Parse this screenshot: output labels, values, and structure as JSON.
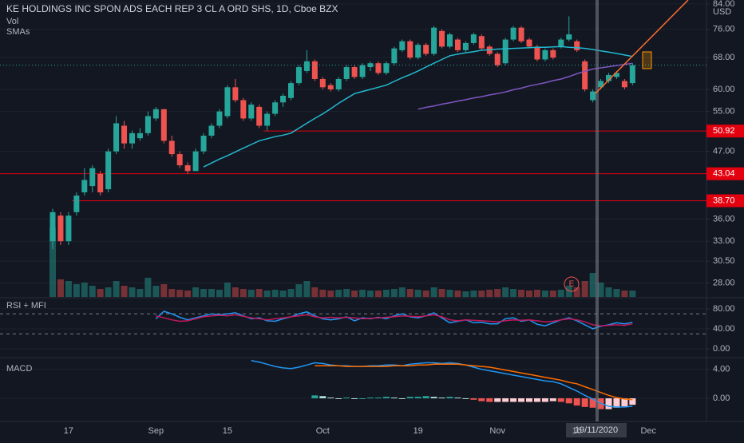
{
  "chart_data": [
    {
      "type": "candlestick",
      "title": "KE HOLDINGS INC SPON ADS EACH REP 3 CL A ORD SHS, 1D, Cboe BZX",
      "indicator_labels": [
        "Vol",
        "SMAs"
      ],
      "currency": "USD",
      "event_marker": "E",
      "up_color": "#26a69a",
      "down_color": "#ef5350",
      "log": true,
      "grid": true,
      "ylim": [
        26.5,
        85.3
      ],
      "yticks": [
        {
          "value": 84,
          "label": "84.00"
        },
        {
          "value": 76,
          "label": "76.00"
        },
        {
          "value": 68,
          "label": "68.00"
        },
        {
          "value": 60,
          "label": "60.00"
        },
        {
          "value": 55,
          "label": "55.00"
        },
        {
          "value": 47,
          "label": "47.00"
        },
        {
          "value": 36,
          "label": "36.00"
        },
        {
          "value": 33,
          "label": "33.00"
        },
        {
          "value": 30.5,
          "label": "30.50"
        },
        {
          "value": 28,
          "label": "28.00"
        }
      ],
      "price_lines": [
        {
          "value": 50.92,
          "label": "50.92"
        },
        {
          "value": 43.04,
          "label": "43.04"
        },
        {
          "value": 38.7,
          "label": "38.70"
        }
      ],
      "price_line_color": "#e3000f",
      "open": [
        33,
        36.5,
        33,
        37,
        40,
        41,
        43,
        40.5,
        47,
        52,
        48.5,
        49.5,
        50.5,
        53.5,
        55.5,
        49,
        46.5,
        44.5,
        43.5,
        47,
        50,
        52,
        54,
        60.5,
        57.5,
        53.5,
        56,
        52,
        54.5,
        57,
        58,
        61.5,
        64.5,
        67,
        62.5,
        61,
        60,
        62.5,
        65.5,
        63,
        65.5,
        66.5,
        64,
        66.5,
        70,
        72.5,
        68,
        71.5,
        69,
        75.5,
        71,
        73,
        70,
        72,
        74,
        71,
        69,
        66.5,
        73,
        76.5,
        73,
        71,
        67.5,
        70,
        71,
        73,
        72.5,
        67,
        57.5,
        60.5,
        62,
        63,
        62,
        61.5,
        null,
        null
      ],
      "high": [
        37.5,
        37,
        37,
        40,
        44,
        44.5,
        43.5,
        47.5,
        54,
        53,
        51,
        51.5,
        55,
        56,
        55.5,
        50,
        47,
        45,
        47.5,
        50.5,
        52.5,
        55.5,
        61,
        62.5,
        58,
        57,
        56.5,
        55,
        57.5,
        59,
        62,
        66,
        70,
        67.5,
        63,
        61.5,
        63,
        66,
        66,
        66.5,
        67,
        67,
        67,
        71,
        73,
        73,
        72,
        72,
        77,
        76,
        75,
        73.5,
        72.5,
        75,
        74.5,
        71.5,
        69.5,
        73.5,
        77,
        77,
        73.5,
        71.5,
        70.5,
        70.5,
        73.5,
        80,
        73,
        67.5,
        60,
        62.5,
        64,
        64.5,
        62.5,
        66.5,
        null,
        null
      ],
      "low": [
        32,
        32.5,
        32.5,
        36.5,
        39.5,
        40,
        39.5,
        40,
        46.5,
        47.5,
        47.5,
        49,
        50,
        53,
        48.5,
        46,
        44,
        43,
        43.5,
        46.5,
        49.5,
        51.5,
        53.5,
        57,
        53,
        53,
        51.5,
        51,
        54,
        56,
        57.5,
        61,
        64,
        62,
        60,
        59.5,
        59.5,
        62,
        62.5,
        62.5,
        64.5,
        63.5,
        63.5,
        66,
        69.5,
        67.5,
        67.5,
        68.5,
        68.5,
        70.5,
        70.5,
        69.5,
        69.5,
        71.5,
        70,
        68.5,
        65.5,
        66,
        72.5,
        72,
        70.5,
        67,
        67,
        67.5,
        70.5,
        72.5,
        69.5,
        59.5,
        57,
        60,
        61.5,
        62.5,
        60,
        61,
        null,
        null
      ],
      "close": [
        37,
        33,
        36.5,
        39.5,
        42,
        44,
        40,
        47,
        52.5,
        48.5,
        50.5,
        50.5,
        54,
        55.5,
        49,
        46.5,
        44.5,
        43.5,
        47,
        50,
        52,
        55,
        60.5,
        57.5,
        53.5,
        56.5,
        52,
        54.5,
        57,
        58.5,
        61.5,
        65.5,
        67,
        62.5,
        60.5,
        60,
        62.5,
        65.5,
        63,
        66,
        66.5,
        64,
        66.5,
        70.5,
        72.5,
        68,
        71.5,
        69,
        76.5,
        71,
        74.5,
        70,
        72,
        74.5,
        70.5,
        69,
        66,
        73,
        76.5,
        72.5,
        71,
        67.5,
        70,
        68,
        73,
        74.5,
        70,
        60,
        59.5,
        62,
        63.5,
        64,
        60.5,
        66,
        null,
        null
      ],
      "volume": [
        87,
        22,
        20,
        16,
        18,
        14,
        10,
        12,
        20,
        14,
        12,
        10,
        24,
        14,
        16,
        10,
        9,
        8,
        12,
        10,
        10,
        9,
        18,
        12,
        10,
        9,
        10,
        8,
        9,
        8,
        10,
        16,
        20,
        12,
        9,
        8,
        9,
        10,
        8,
        9,
        8,
        8,
        9,
        10,
        12,
        10,
        9,
        8,
        12,
        10,
        9,
        8,
        7,
        8,
        8,
        9,
        10,
        12,
        10,
        9,
        8,
        9,
        8,
        8,
        9,
        14,
        12,
        20,
        30,
        18,
        12,
        10,
        8,
        8,
        null,
        null
      ],
      "series": [
        {
          "color": "#22b8cf",
          "values": [
            null,
            null,
            null,
            null,
            null,
            null,
            null,
            null,
            null,
            null,
            null,
            null,
            null,
            null,
            null,
            null,
            null,
            null,
            null,
            44.2,
            44.9,
            45.6,
            46.2,
            46.9,
            47.6,
            48.3,
            49,
            49.4,
            49.8,
            50.1,
            50.5,
            51.5,
            52.5,
            53.5,
            54.5,
            55.6,
            56.8,
            57.9,
            59,
            59.5,
            60,
            60.5,
            61,
            61.9,
            62.8,
            63.6,
            64.5,
            65.5,
            66.5,
            67.5,
            68.5,
            68.9,
            69.3,
            69.6,
            70,
            70.1,
            70.3,
            70.4,
            70.5,
            70.6,
            70.7,
            70.8,
            70.8,
            70.9,
            71,
            70.8,
            70.7,
            70.5,
            70.2,
            69.8,
            69.5,
            69.1,
            68.7,
            68.3,
            null,
            null
          ]
        },
        {
          "color": "#7e57c2",
          "values": [
            null,
            null,
            null,
            null,
            null,
            null,
            null,
            null,
            null,
            null,
            null,
            null,
            null,
            null,
            null,
            null,
            null,
            null,
            null,
            null,
            null,
            null,
            null,
            null,
            null,
            null,
            null,
            null,
            null,
            null,
            null,
            null,
            null,
            null,
            null,
            null,
            null,
            null,
            null,
            null,
            null,
            null,
            null,
            null,
            null,
            null,
            55.5,
            55.9,
            56.2,
            56.6,
            56.9,
            57.3,
            57.6,
            58,
            58.3,
            58.7,
            59,
            59.4,
            59.9,
            60.3,
            60.8,
            61.2,
            61.6,
            62.1,
            62.5,
            63.1,
            63.8,
            64.4,
            65,
            65.3,
            65.6,
            65.9,
            66.2,
            66.5,
            null,
            null
          ]
        }
      ]
    },
    {
      "type": "line",
      "title": "RSI + MFI",
      "ylim": [
        -16,
        99
      ],
      "yticks": [
        {
          "value": 80,
          "label": "80.00"
        },
        {
          "value": 40,
          "label": "40.00"
        },
        {
          "value": 0,
          "label": "0.00"
        }
      ],
      "dashed_levels": [
        70,
        30
      ],
      "series": [
        {
          "color": "#2196f3",
          "values": [
            null,
            null,
            null,
            null,
            null,
            null,
            null,
            null,
            null,
            null,
            null,
            null,
            null,
            60,
            75,
            70,
            63,
            58,
            62,
            66,
            70,
            68,
            70,
            72,
            66,
            60,
            62,
            56,
            55,
            60,
            64,
            70,
            74,
            66,
            60,
            58,
            60,
            64,
            56,
            62,
            60,
            63,
            60,
            66,
            70,
            64,
            62,
            66,
            72,
            62,
            52,
            55,
            58,
            52,
            53,
            50,
            50,
            60,
            62,
            55,
            58,
            49,
            46,
            52,
            58,
            62,
            56,
            48,
            40,
            45,
            48,
            52,
            50,
            53,
            null,
            null
          ]
        },
        {
          "color": "#c2185b",
          "values": [
            null,
            null,
            null,
            null,
            null,
            null,
            null,
            null,
            null,
            null,
            null,
            null,
            null,
            66,
            62,
            58,
            55,
            56,
            60,
            64,
            66,
            67,
            66,
            68,
            65,
            62,
            60,
            58,
            60,
            62,
            64,
            66,
            68,
            64,
            62,
            63,
            62,
            63,
            62,
            60,
            61,
            62,
            63,
            64,
            66,
            65,
            64,
            66,
            68,
            64,
            58,
            56,
            58,
            57,
            56,
            55,
            54,
            56,
            58,
            57,
            58,
            56,
            54,
            55,
            58,
            60,
            58,
            54,
            48,
            46,
            47,
            48,
            47,
            50,
            null,
            null
          ]
        }
      ]
    },
    {
      "type": "combo",
      "title": "MACD",
      "ylim": [
        -3.2,
        5.4
      ],
      "yticks": [
        {
          "value": 4,
          "label": "4.00"
        },
        {
          "value": 0,
          "label": "0.00"
        }
      ],
      "categories": [
        null,
        null,
        "17",
        null,
        null,
        null,
        null,
        null,
        null,
        null,
        null,
        null,
        null,
        "Sep",
        null,
        null,
        null,
        null,
        null,
        null,
        null,
        null,
        "15",
        null,
        null,
        null,
        null,
        null,
        null,
        null,
        null,
        null,
        null,
        null,
        "Oct",
        null,
        null,
        null,
        null,
        null,
        null,
        null,
        null,
        null,
        null,
        null,
        "19",
        null,
        null,
        null,
        null,
        null,
        null,
        null,
        null,
        null,
        "Nov",
        null,
        null,
        null,
        null,
        null,
        null,
        null,
        null,
        null,
        "16",
        null,
        null,
        null,
        null,
        null,
        null,
        null,
        null,
        "Dec"
      ],
      "crosshair_label": "19/11/2020",
      "series": [
        {
          "type": "bar",
          "values": [
            null,
            null,
            null,
            null,
            null,
            null,
            null,
            null,
            null,
            null,
            null,
            null,
            null,
            null,
            null,
            null,
            null,
            null,
            null,
            null,
            null,
            null,
            null,
            null,
            null,
            null,
            null,
            null,
            null,
            null,
            null,
            null,
            null,
            0.4,
            0.3,
            0.1,
            0,
            0.1,
            0,
            0,
            0.1,
            0.1,
            0.2,
            0.1,
            0,
            0.2,
            0.2,
            0.3,
            0.2,
            0.1,
            0.2,
            0.1,
            0,
            -0.2,
            -0.4,
            -0.5,
            -0.5,
            -0.5,
            -0.5,
            -0.5,
            -0.5,
            -0.5,
            -0.5,
            -0.4,
            -0.5,
            -0.7,
            -1,
            -1.2,
            -1.3,
            -1.5,
            -1.5,
            -1.3,
            -1.1,
            -0.9,
            null,
            null
          ]
        },
        {
          "type": "line",
          "color": "#2196f3",
          "values": [
            null,
            null,
            null,
            null,
            null,
            null,
            null,
            null,
            null,
            null,
            null,
            null,
            null,
            null,
            null,
            null,
            null,
            null,
            null,
            null,
            null,
            null,
            null,
            null,
            null,
            5.2,
            5,
            4.7,
            4.4,
            4.2,
            4.1,
            4.3,
            4.6,
            4.9,
            4.8,
            4.6,
            4.5,
            4.5,
            4.4,
            4.4,
            4.5,
            4.5,
            4.6,
            4.6,
            4.5,
            4.7,
            4.8,
            4.9,
            4.9,
            4.8,
            4.9,
            4.8,
            4.6,
            4.3,
            4,
            3.8,
            3.6,
            3.4,
            3.2,
            3,
            2.8,
            2.6,
            2.4,
            2.3,
            2,
            1.5,
            1,
            0.4,
            -0.1,
            -0.7,
            -1.1,
            -1.2,
            -1.2,
            -1.1,
            null,
            null
          ]
        },
        {
          "type": "line",
          "color": "#ff6d00",
          "values": [
            null,
            null,
            null,
            null,
            null,
            null,
            null,
            null,
            null,
            null,
            null,
            null,
            null,
            null,
            null,
            null,
            null,
            null,
            null,
            null,
            null,
            null,
            null,
            null,
            null,
            null,
            null,
            null,
            null,
            null,
            null,
            null,
            null,
            4.5,
            4.5,
            4.5,
            4.5,
            4.4,
            4.4,
            4.4,
            4.4,
            4.4,
            4.4,
            4.5,
            4.5,
            4.5,
            4.6,
            4.6,
            4.7,
            4.7,
            4.7,
            4.7,
            4.6,
            4.5,
            4.4,
            4.3,
            4.1,
            3.9,
            3.7,
            3.5,
            3.3,
            3.1,
            2.9,
            2.7,
            2.5,
            2.2,
            2,
            1.6,
            1.2,
            0.8,
            0.4,
            0.1,
            -0.1,
            -0.2,
            null,
            null
          ]
        }
      ]
    }
  ]
}
